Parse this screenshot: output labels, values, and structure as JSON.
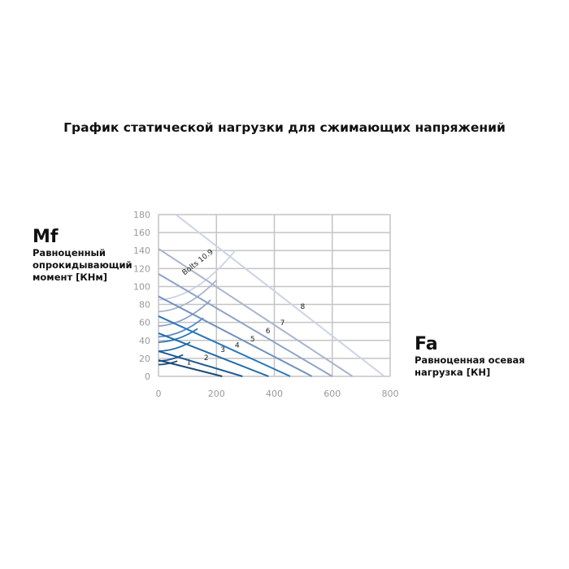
{
  "chart_data": {
    "type": "line",
    "title": "График статической нагрузки для сжимающих напряжений",
    "ylabel": {
      "symbol": "Mf",
      "text": [
        "Равноценный",
        "опрокидывающий",
        "момент [КНм]"
      ]
    },
    "xlabel": {
      "symbol": "Fa",
      "text": [
        "Равноценная осевая",
        "нагрузка [КН]"
      ]
    },
    "xlim": [
      0,
      800
    ],
    "ylim": [
      0,
      180
    ],
    "xticks": [
      "0",
      "200",
      "400",
      "600",
      "800"
    ],
    "yticks": [
      "0",
      "20",
      "40",
      "60",
      "80",
      "100",
      "120",
      "140",
      "160",
      "180"
    ],
    "grid": true,
    "series": [
      {
        "name": "1",
        "x": [
          0,
          220
        ],
        "y": [
          18,
          0
        ],
        "color": "#1d4a78",
        "label_at": [
          105,
          13
        ]
      },
      {
        "name": "2",
        "x": [
          0,
          290
        ],
        "y": [
          28,
          0
        ],
        "color": "#1f5c93",
        "label_at": [
          165,
          18
        ]
      },
      {
        "name": "3",
        "x": [
          0,
          380
        ],
        "y": [
          48,
          0
        ],
        "color": "#1f6aa8",
        "label_at": [
          222,
          27
        ]
      },
      {
        "name": "4",
        "x": [
          0,
          455
        ],
        "y": [
          67,
          0
        ],
        "color": "#2a78b8",
        "label_at": [
          272,
          32
        ]
      },
      {
        "name": "5",
        "x": [
          0,
          530
        ],
        "y": [
          89,
          0
        ],
        "color": "#6f91bd",
        "label_at": [
          325,
          39
        ]
      },
      {
        "name": "6",
        "x": [
          0,
          600
        ],
        "y": [
          114,
          0
        ],
        "color": "#8ea3c6",
        "label_at": [
          378,
          48
        ]
      },
      {
        "name": "7",
        "x": [
          0,
          670
        ],
        "y": [
          142,
          0
        ],
        "color": "#aab5cf",
        "label_at": [
          428,
          57
        ]
      },
      {
        "name": "8",
        "x": [
          60,
          780
        ],
        "y": [
          180,
          0
        ],
        "color": "#ccd3e4",
        "label_at": [
          498,
          75
        ]
      }
    ],
    "bolt_curves": {
      "name": "Bolts 10.9",
      "curves": [
        {
          "start": [
            0,
            13
          ],
          "end": [
            65,
            17
          ],
          "color": "#1d4a78"
        },
        {
          "start": [
            0,
            17
          ],
          "end": [
            85,
            24
          ],
          "color": "#1f5c93"
        },
        {
          "start": [
            0,
            28
          ],
          "end": [
            110,
            38
          ],
          "color": "#1f6aa8"
        },
        {
          "start": [
            0,
            38
          ],
          "end": [
            135,
            53
          ],
          "color": "#2a78b8"
        },
        {
          "start": [
            0,
            44
          ],
          "end": [
            155,
            65
          ],
          "color": "#5d8fc4"
        },
        {
          "start": [
            0,
            56
          ],
          "end": [
            180,
            85
          ],
          "color": "#8ea3c6"
        },
        {
          "start": [
            0,
            72
          ],
          "end": [
            200,
            107
          ],
          "color": "#aab5cf"
        },
        {
          "start": [
            0,
            85
          ],
          "end": [
            265,
            140
          ],
          "color": "#ccd3e4"
        }
      ]
    }
  }
}
